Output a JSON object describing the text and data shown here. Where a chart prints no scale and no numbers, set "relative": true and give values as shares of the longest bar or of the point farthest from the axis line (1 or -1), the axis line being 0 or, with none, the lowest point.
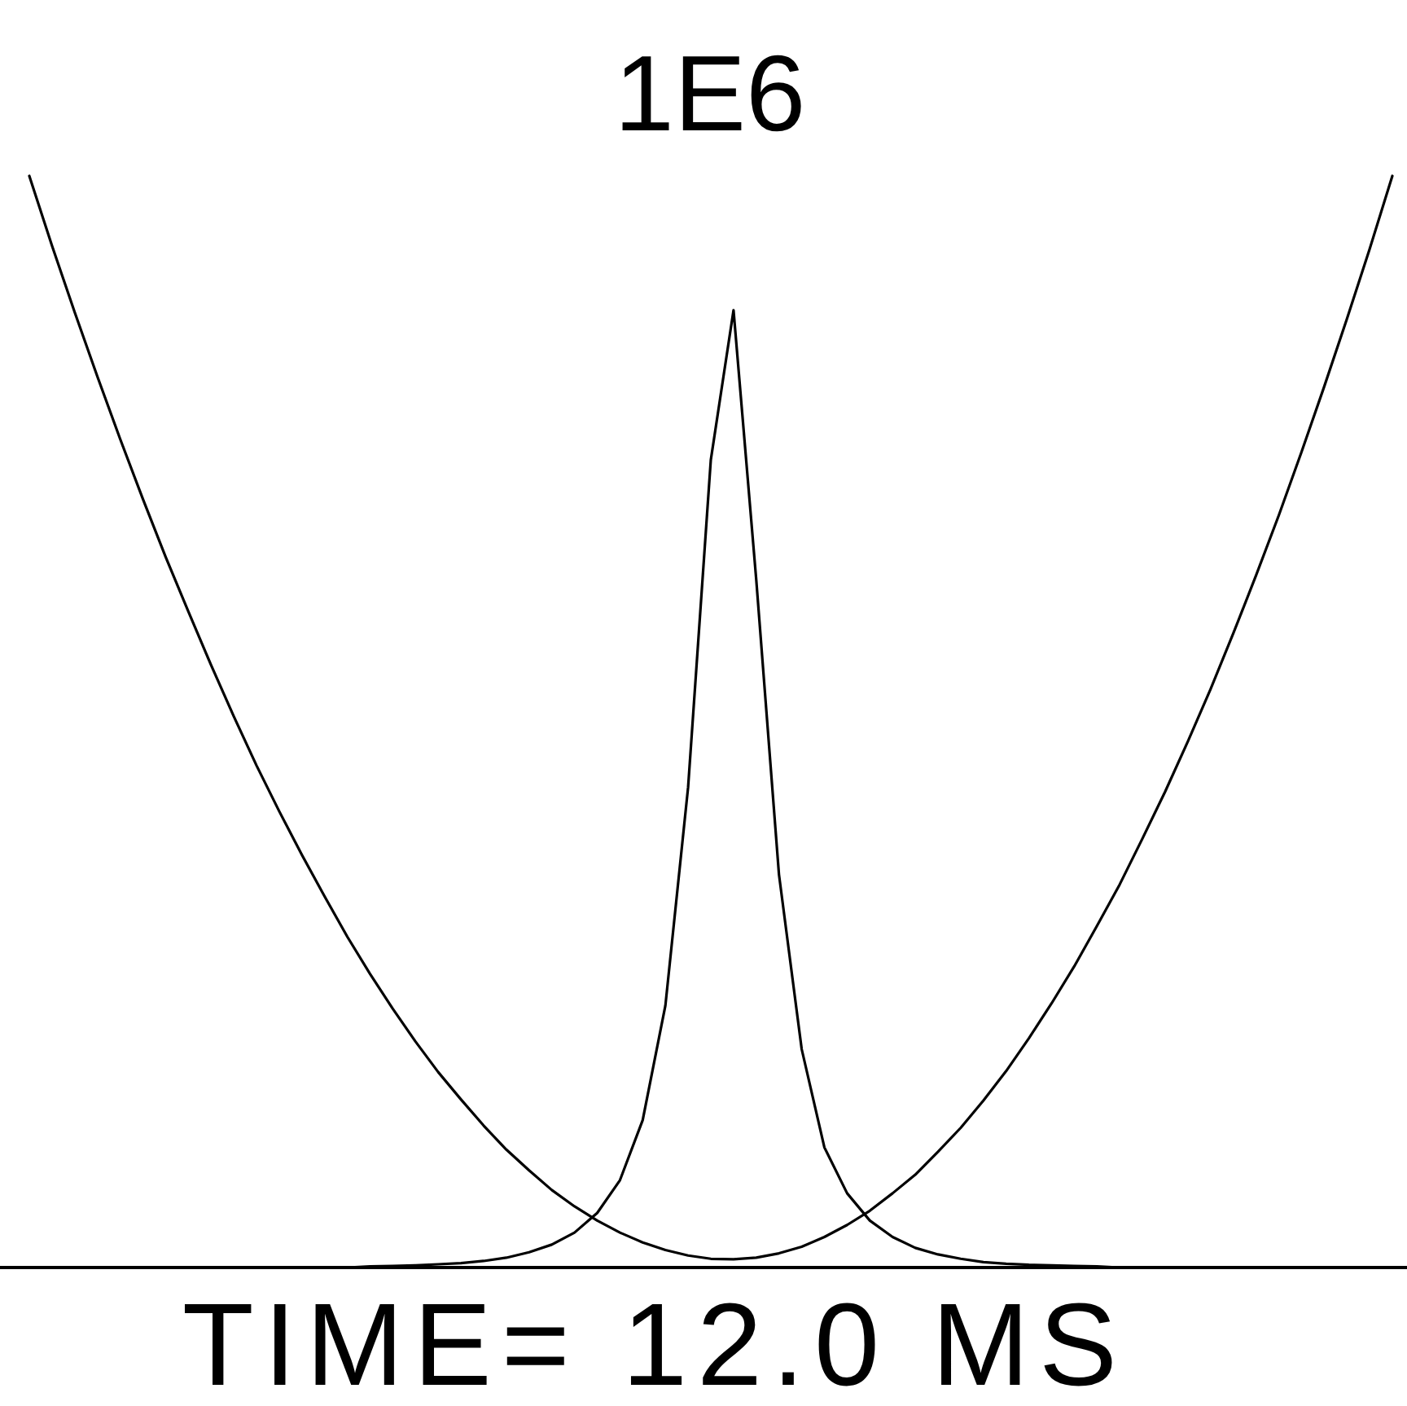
{
  "chart_data": {
    "type": "line",
    "relative": true,
    "title": "TIME= 12.0 MS",
    "annotations": [
      "1E6"
    ],
    "categories": [
      null,
      null,
      null,
      null,
      null,
      null,
      null,
      null,
      null,
      null,
      null,
      null,
      null,
      null,
      null,
      null,
      null,
      null,
      null,
      null,
      null,
      null,
      null,
      null,
      null,
      null,
      null,
      null,
      null,
      null,
      null,
      null,
      null,
      null,
      null,
      null,
      null,
      null,
      null,
      null,
      null,
      null,
      null,
      null,
      null,
      null,
      null,
      null,
      null,
      null,
      null,
      null,
      null,
      null,
      null,
      null,
      null,
      null,
      null,
      null,
      null
    ],
    "series": [
      {
        "color": "#000000",
        "values": [
          1.0,
          0.936,
          0.875,
          0.816,
          0.759,
          0.704,
          0.651,
          0.601,
          0.552,
          0.505,
          0.46,
          0.418,
          0.378,
          0.34,
          0.303,
          0.269,
          0.237,
          0.207,
          0.179,
          0.154,
          0.13,
          0.108,
          0.089,
          0.071,
          0.056,
          0.043,
          0.032,
          0.023,
          0.016,
          0.011,
          0.008,
          0.0075,
          0.009,
          0.013,
          0.019,
          0.028,
          0.039,
          0.052,
          0.068,
          0.085,
          0.106,
          0.128,
          0.153,
          0.18,
          0.21,
          0.242,
          0.276,
          0.313,
          0.351,
          0.393,
          0.436,
          0.482,
          0.53,
          0.581,
          0.634,
          0.689,
          0.747,
          0.807,
          0.869,
          0.933,
          1.0
        ]
      },
      {
        "color": "#000000",
        "values": [
          0,
          0,
          0,
          0,
          0,
          0,
          0,
          0,
          0,
          0,
          0,
          0,
          0,
          0,
          0,
          0.001,
          0.0015,
          0.002,
          0.003,
          0.004,
          0.006,
          0.009,
          0.014,
          0.021,
          0.032,
          0.05,
          0.08,
          0.135,
          0.24,
          0.44,
          0.74,
          0.877,
          0.63,
          0.36,
          0.2,
          0.11,
          0.068,
          0.043,
          0.028,
          0.018,
          0.012,
          0.008,
          0.005,
          0.0035,
          0.0025,
          0.002,
          0.0015,
          0.001,
          0,
          0,
          0,
          0,
          0,
          0,
          0,
          0,
          0,
          0,
          0,
          0,
          0
        ]
      }
    ]
  }
}
